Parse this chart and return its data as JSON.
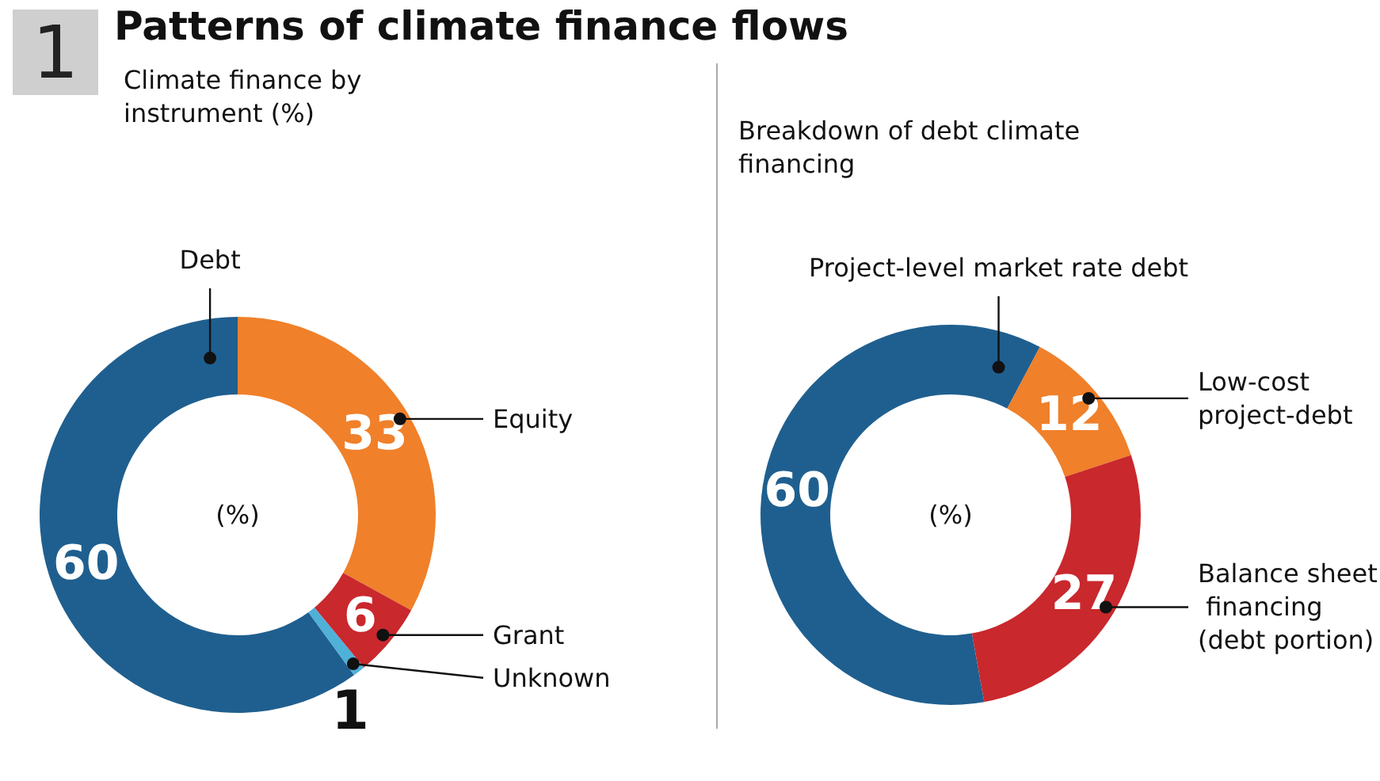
{
  "chart_data": [
    {
      "type": "donut",
      "title": "Patterns of climate finance flows",
      "subtitle": "Climate finance by instrument (%)",
      "annotations": [
        "1",
        "(%)"
      ],
      "categories": [
        "Debt",
        "Equity",
        "Grant",
        "Unknown"
      ],
      "values": [
        60,
        33,
        6,
        1
      ],
      "colors": [
        "#1f5f8f",
        "#f0802a",
        "#c9282d",
        "#4fb0d8"
      ],
      "data_labels": true,
      "legend": false
    },
    {
      "type": "donut",
      "subtitle": "Breakdown of debt climate financing",
      "annotations": [
        "(%)"
      ],
      "categories": [
        "Project-level market rate debt",
        "Low-cost project-debt",
        "Balance sheet financing (debt portion)"
      ],
      "values": [
        60,
        12,
        27
      ],
      "colors": [
        "#1f5f8f",
        "#f0802a",
        "#c9282d"
      ],
      "data_labels": true,
      "legend": false
    }
  ]
}
